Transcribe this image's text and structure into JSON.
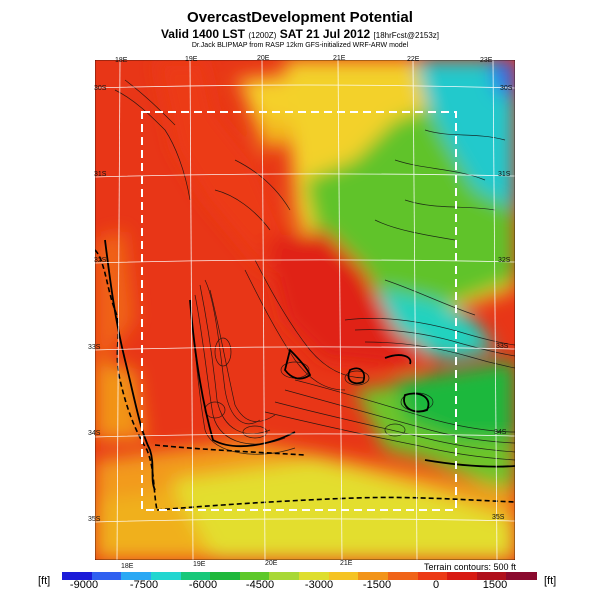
{
  "header": {
    "title": "OvercastDevelopment Potential",
    "valid_main": "Valid 1400 LST",
    "valid_utc": "(1200Z)",
    "valid_date": "SAT 21 Jul 2012",
    "valid_fcst": "[18hrFcst@2153z]",
    "source": "Dr.Jack BLIPMAP from RASP 12km GFS-initialized WRF-ARW model"
  },
  "map": {
    "lon_labels_top": [
      "18E",
      "19E",
      "20E",
      "21E",
      "22E",
      "23E"
    ],
    "lon_labels_bottom": [
      "18E",
      "19E",
      "20E",
      "21E"
    ],
    "lat_labels_left": [
      "30S",
      "31S",
      "32S",
      "33S",
      "34S",
      "35S"
    ],
    "lat_labels_right": [
      "30S",
      "31S",
      "32S",
      "33S",
      "34S",
      "35S"
    ],
    "terrain_note": "Terrain contours: 500 ft"
  },
  "legend": {
    "unit_left": "[ft]",
    "unit_right": "[ft]",
    "ticks": [
      "-9000",
      "-7500",
      "-6000",
      "-4500",
      "-3000",
      "-1500",
      "0",
      "1500"
    ],
    "colors": [
      "#1b1bd8",
      "#2f60f0",
      "#2aa8f4",
      "#22d6d0",
      "#18c87a",
      "#1fb83c",
      "#5ec82a",
      "#a8d836",
      "#dede2e",
      "#f5c323",
      "#f29419",
      "#f06418",
      "#ec3a15",
      "#d81a12",
      "#b0101c",
      "#8a0a2e"
    ]
  }
}
